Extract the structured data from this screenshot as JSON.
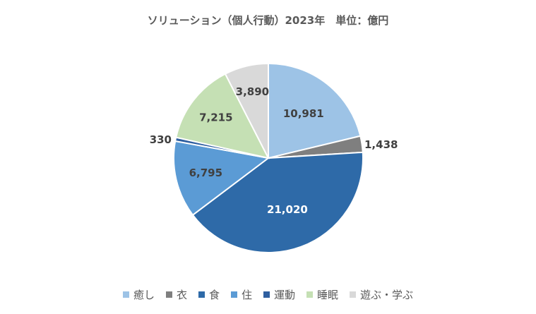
{
  "chart_data": {
    "type": "pie",
    "title": "ソリューション（個人行動）2023年　単位：億円",
    "categories": [
      "癒し",
      "衣",
      "食",
      "住",
      "運動",
      "睡眠",
      "遊ぶ・学ぶ"
    ],
    "value_labels": [
      "10,981",
      "1,438",
      "21,020",
      "6,795",
      "330",
      "7,215",
      "3,890"
    ],
    "series": [
      {
        "values": [
          10981,
          1438,
          21020,
          6795,
          330,
          7215,
          3890
        ]
      }
    ],
    "legend_position": "bottom",
    "colors": [
      "#9dc3e6",
      "#7f7f7f",
      "#2e6aa8",
      "#5b9bd5",
      "#2f5fa0",
      "#c5e0b4",
      "#d9d9d9"
    ]
  }
}
